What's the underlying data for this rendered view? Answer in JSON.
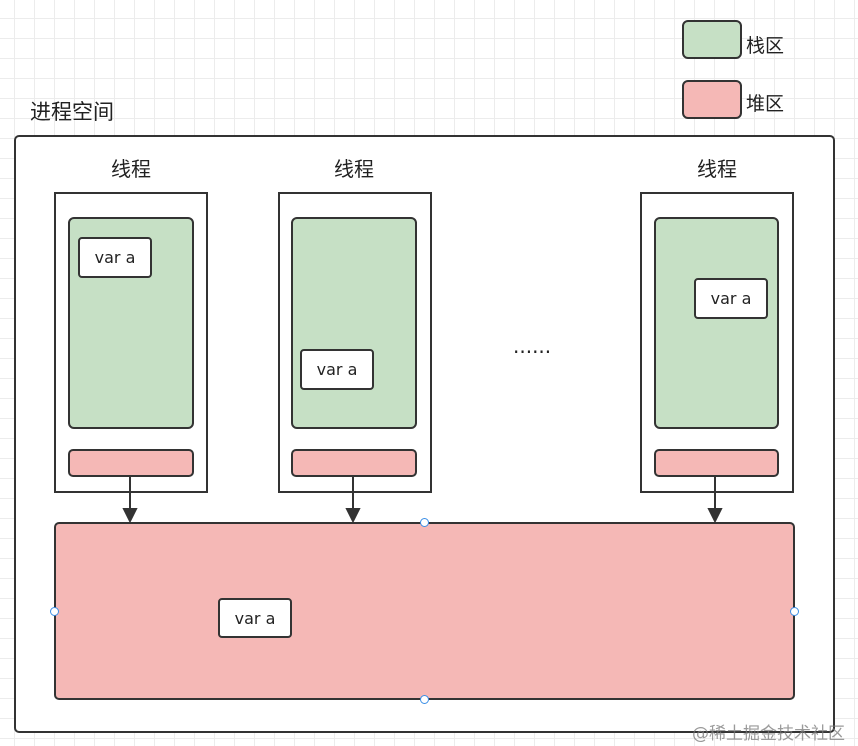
{
  "legend": {
    "stack": {
      "label": "栈区",
      "color": "#c6e0c5"
    },
    "heap": {
      "label": "堆区",
      "color": "#f5b8b6"
    }
  },
  "process": {
    "title": "进程空间"
  },
  "threads": [
    {
      "label": "线程",
      "var": "var a"
    },
    {
      "label": "线程",
      "var": "var a"
    },
    {
      "label": "线程",
      "var": "var a"
    }
  ],
  "ellipsis": "......",
  "heap": {
    "var": "var a"
  },
  "watermark": "@稀土掘金技术社区"
}
